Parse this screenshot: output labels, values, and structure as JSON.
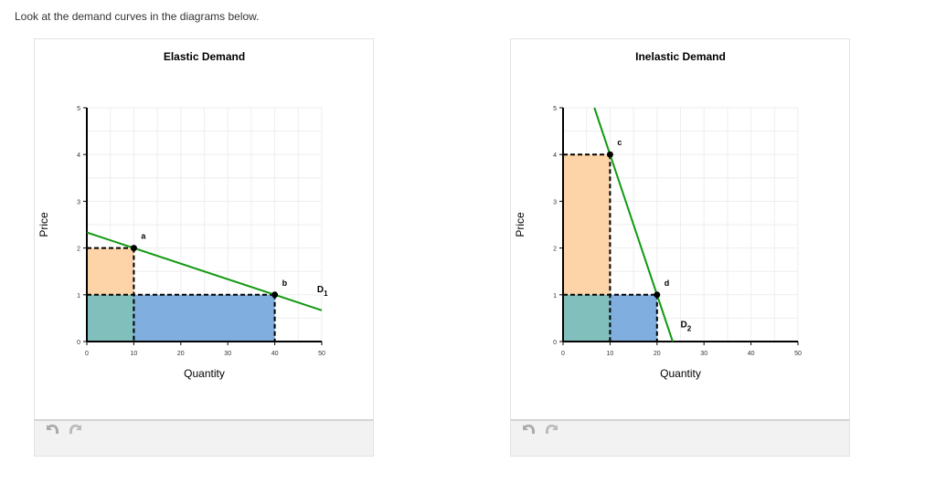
{
  "prompt": "Look at the demand curves in the diagrams below.",
  "colors": {
    "curve": "#119911",
    "orange": "#fdd4a8",
    "teal": "#80bfbb",
    "blue": "#80aedf",
    "grid": "#eeeeee"
  },
  "chart_data": [
    {
      "type": "line",
      "title": "Elastic Demand",
      "xlabel": "Quantity",
      "ylabel": "Price",
      "xlim": [
        0,
        50
      ],
      "ylim": [
        0,
        5
      ],
      "xticks": [
        "0",
        "10",
        "20",
        "30",
        "40",
        "50"
      ],
      "yticks": [
        "0",
        "1",
        "2",
        "3",
        "4",
        "5"
      ],
      "grid": true,
      "curve": {
        "name": "D",
        "subscript": "1",
        "points": [
          [
            0,
            2.333
          ],
          [
            50,
            0.667
          ]
        ]
      },
      "points": [
        {
          "label": "a",
          "x": 10,
          "y": 2
        },
        {
          "label": "b",
          "x": 40,
          "y": 1
        }
      ],
      "areas": [
        {
          "name": "orange",
          "x": [
            0,
            10
          ],
          "y": [
            1,
            2
          ]
        },
        {
          "name": "teal",
          "x": [
            0,
            10
          ],
          "y": [
            0,
            1
          ]
        },
        {
          "name": "blue",
          "x": [
            10,
            40
          ],
          "y": [
            0,
            1
          ]
        }
      ],
      "label_pos": {
        "x": 49,
        "y": 1.05
      }
    },
    {
      "type": "line",
      "title": "Inelastic Demand",
      "xlabel": "Quantity",
      "ylabel": "Price",
      "xlim": [
        0,
        50
      ],
      "ylim": [
        0,
        5
      ],
      "xticks": [
        "0",
        "10",
        "20",
        "30",
        "40",
        "50"
      ],
      "yticks": [
        "0",
        "1",
        "2",
        "3",
        "4",
        "5"
      ],
      "grid": true,
      "curve": {
        "name": "D",
        "subscript": "2",
        "points": [
          [
            6.667,
            5
          ],
          [
            23.333,
            0
          ]
        ]
      },
      "points": [
        {
          "label": "c",
          "x": 10,
          "y": 4
        },
        {
          "label": "d",
          "x": 20,
          "y": 1
        }
      ],
      "areas": [
        {
          "name": "orange",
          "x": [
            0,
            10
          ],
          "y": [
            1,
            4
          ]
        },
        {
          "name": "teal",
          "x": [
            0,
            10
          ],
          "y": [
            0,
            1
          ]
        },
        {
          "name": "blue",
          "x": [
            10,
            20
          ],
          "y": [
            0,
            1
          ]
        }
      ],
      "label_pos": {
        "x": 25,
        "y": 0.3
      }
    }
  ],
  "footer": {
    "undo": "undo-icon",
    "redo": "redo-icon"
  }
}
